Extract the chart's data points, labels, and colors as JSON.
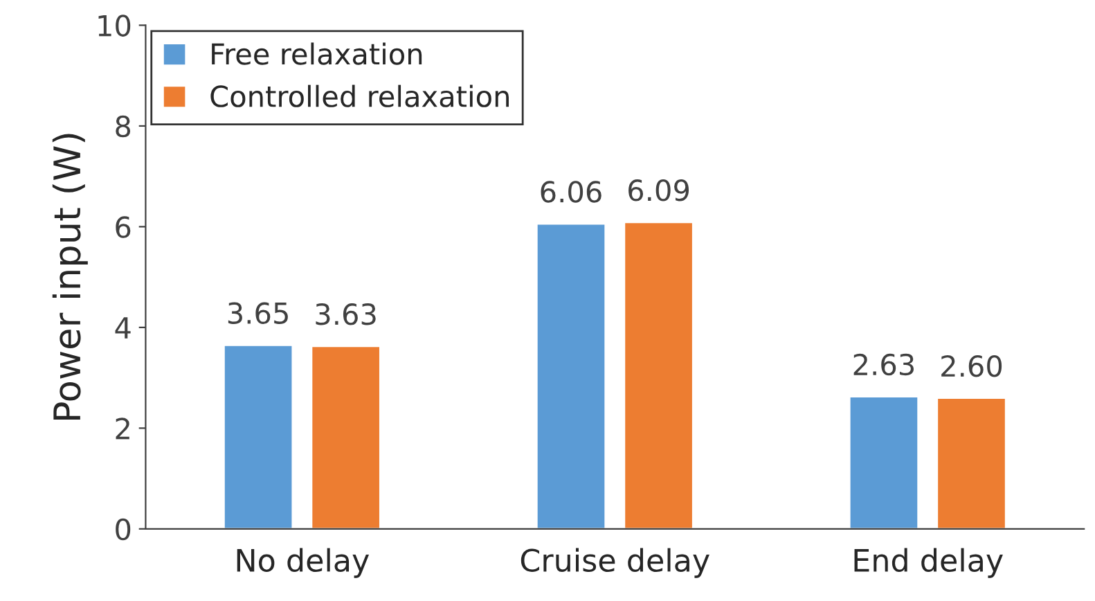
{
  "chart_data": {
    "type": "bar",
    "ylabel": "Power input (W)",
    "categories": [
      "No delay",
      "Cruise delay",
      "End delay"
    ],
    "series": [
      {
        "name": "Free relaxation",
        "color": "#5b9bd5",
        "values": [
          3.65,
          6.06,
          2.63
        ],
        "value_labels": [
          "3.65",
          "6.06",
          "2.63"
        ]
      },
      {
        "name": "Controlled relaxation",
        "color": "#ed7d31",
        "values": [
          3.63,
          6.09,
          2.6
        ],
        "value_labels": [
          "3.63",
          "6.09",
          "2.60"
        ]
      }
    ],
    "ylim": [
      0,
      10
    ],
    "yticks": [
      0,
      2,
      4,
      6,
      8,
      10
    ],
    "grid": false,
    "legend": "top left"
  }
}
